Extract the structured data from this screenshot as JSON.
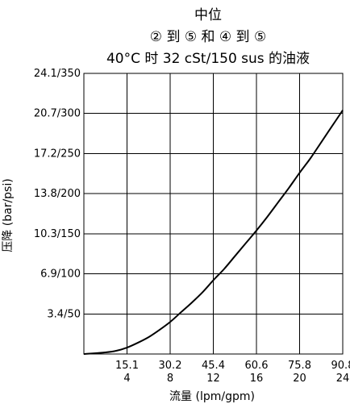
{
  "chart_data": {
    "type": "line",
    "title": [
      "中位",
      "② 到 ⑤ 和 ④ 到 ⑤",
      "40°C 时 32 cSt/150 sus 的油液"
    ],
    "xlabel": "流量 (lpm/gpm)",
    "ylabel": "压降 (bar/psi)",
    "xlim": [
      0,
      24
    ],
    "ylim": [
      0,
      350
    ],
    "grid": true,
    "x_ticks": [
      {
        "value": 4,
        "label_top": "15.1",
        "label_bottom": "4"
      },
      {
        "value": 8,
        "label_top": "30.2",
        "label_bottom": "8"
      },
      {
        "value": 12,
        "label_top": "45.4",
        "label_bottom": "12"
      },
      {
        "value": 16,
        "label_top": "60.6",
        "label_bottom": "16"
      },
      {
        "value": 20,
        "label_top": "75.8",
        "label_bottom": "20"
      },
      {
        "value": 24,
        "label_top": "90.8",
        "label_bottom": "24"
      }
    ],
    "y_ticks": [
      {
        "value": 50,
        "label": "3.4/50"
      },
      {
        "value": 100,
        "label": "6.9/100"
      },
      {
        "value": 150,
        "label": "10.3/150"
      },
      {
        "value": 200,
        "label": "13.8/200"
      },
      {
        "value": 250,
        "label": "17.2/250"
      },
      {
        "value": 300,
        "label": "20.7/300"
      },
      {
        "value": 350,
        "label": "24.1/350"
      }
    ],
    "series": [
      {
        "x": [
          0,
          2,
          3,
          4,
          5,
          6,
          7,
          8,
          9,
          10,
          11,
          12,
          13,
          14,
          15,
          16,
          17,
          18,
          19,
          20,
          21,
          22,
          23,
          24
        ],
        "y": [
          0,
          2,
          4,
          8,
          14,
          21,
          30,
          40,
          52,
          64,
          77,
          92,
          106,
          122,
          138,
          154,
          171,
          189,
          207,
          226,
          244,
          264,
          284,
          304
        ]
      }
    ]
  }
}
